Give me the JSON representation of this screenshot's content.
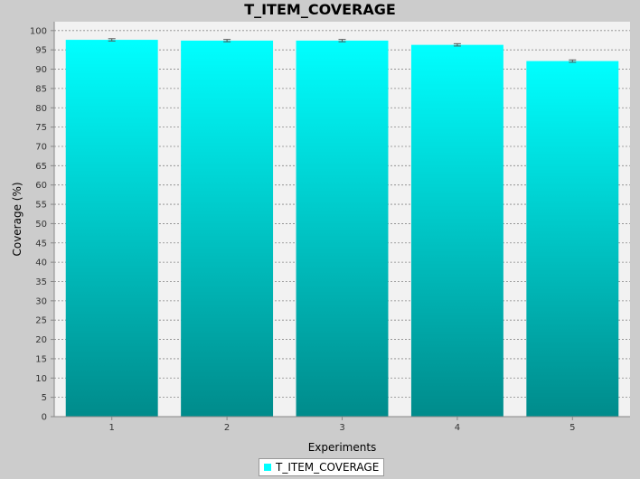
{
  "chart_data": {
    "type": "bar",
    "title": "T_ITEM_COVERAGE",
    "xlabel": "Experiments",
    "ylabel": "Coverage (%)",
    "categories": [
      "1",
      "2",
      "3",
      "4",
      "5"
    ],
    "series": [
      {
        "name": "T_ITEM_COVERAGE",
        "values": [
          97.6,
          97.4,
          97.4,
          96.3,
          92.1
        ],
        "error": [
          0.3,
          0.3,
          0.3,
          0.3,
          0.3
        ]
      }
    ],
    "ylim": [
      0,
      100
    ],
    "ytick_step": 5,
    "ylim_top_margin": 2.3,
    "grid": true,
    "legend_position": "bottom-center",
    "colors": {
      "bar_top": "#00ffff",
      "bar_bottom": "#008b8b",
      "plot_background": "#f2f2f2",
      "page_background": "#cccccc",
      "gridline": "#888888",
      "error_bar": "#555555"
    }
  }
}
